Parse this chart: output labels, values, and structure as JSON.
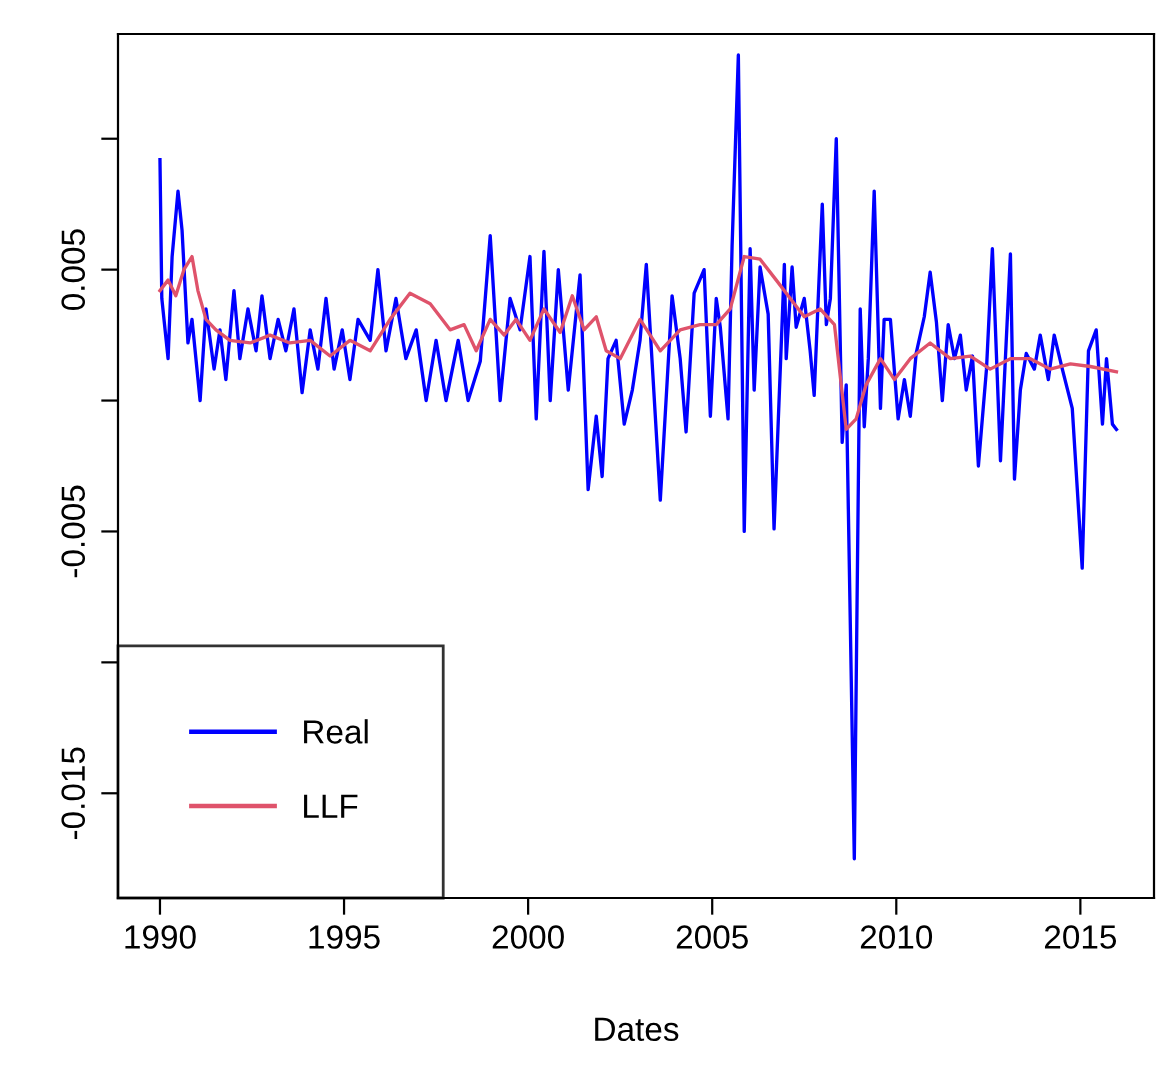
{
  "chart_data": {
    "type": "line",
    "xlabel": "Dates",
    "xlim": [
      1988.86,
      2017.0
    ],
    "ylim": [
      -0.019,
      0.014
    ],
    "xticks": [
      1990,
      1995,
      2000,
      2005,
      2010,
      2015
    ],
    "yticks": [
      -0.015,
      {
        "value": -0.01,
        "label": null
      },
      -0.005,
      {
        "value": 0,
        "label": null
      },
      0.005,
      {
        "value": 0.01,
        "label": null
      }
    ],
    "legend": "bottom left",
    "grid": false,
    "marker": "none",
    "line_style": "solid",
    "series": [
      {
        "name": "Real",
        "color": "#0000ff",
        "x": [
          1990.0,
          1990.05,
          1990.22,
          1990.33,
          1990.49,
          1990.6,
          1990.76,
          1990.87,
          1991.09,
          1991.25,
          1991.47,
          1991.63,
          1991.79,
          1992.01,
          1992.17,
          1992.39,
          1992.61,
          1992.77,
          1992.99,
          1993.21,
          1993.42,
          1993.64,
          1993.86,
          1994.08,
          1994.29,
          1994.51,
          1994.73,
          1994.95,
          1995.16,
          1995.38,
          1995.71,
          1995.92,
          1996.14,
          1996.41,
          1996.68,
          1996.96,
          1997.23,
          1997.5,
          1997.77,
          1998.1,
          1998.37,
          1998.7,
          1998.97,
          1999.24,
          1999.51,
          1999.78,
          2000.05,
          2000.22,
          2000.43,
          2000.6,
          2000.82,
          2001.09,
          2001.41,
          2001.63,
          2001.85,
          2002.01,
          2002.17,
          2002.39,
          2002.61,
          2002.83,
          2003.04,
          2003.21,
          2003.59,
          2003.91,
          2004.13,
          2004.29,
          2004.51,
          2004.78,
          2004.95,
          2005.11,
          2005.22,
          2005.43,
          2005.54,
          2005.71,
          2005.87,
          2006.03,
          2006.14,
          2006.3,
          2006.52,
          2006.68,
          2006.96,
          2007.01,
          2007.17,
          2007.28,
          2007.5,
          2007.66,
          2007.77,
          2007.88,
          2007.99,
          2008.1,
          2008.21,
          2008.37,
          2008.53,
          2008.64,
          2008.86,
          2009.02,
          2009.13,
          2009.24,
          2009.4,
          2009.57,
          2009.67,
          2009.84,
          2010.05,
          2010.22,
          2010.38,
          2010.54,
          2010.76,
          2010.92,
          2011.09,
          2011.25,
          2011.41,
          2011.58,
          2011.74,
          2011.9,
          2012.07,
          2012.23,
          2012.45,
          2012.61,
          2012.83,
          2013.1,
          2013.21,
          2013.37,
          2013.53,
          2013.75,
          2013.91,
          2014.13,
          2014.29,
          2014.51,
          2014.78,
          2015.05,
          2015.22,
          2015.43,
          2015.6,
          2015.71,
          2015.87,
          2015.98
        ],
        "values": [
          0.0092,
          0.0039,
          0.0016,
          0.0055,
          0.008,
          0.0065,
          0.0022,
          0.0031,
          0.0,
          0.0035,
          0.0012,
          0.0027,
          0.0008,
          0.0042,
          0.0016,
          0.0035,
          0.0019,
          0.004,
          0.0016,
          0.0031,
          0.0019,
          0.0035,
          0.0003,
          0.0027,
          0.0012,
          0.0039,
          0.0012,
          0.0027,
          0.0008,
          0.0031,
          0.0023,
          0.005,
          0.0019,
          0.0039,
          0.0016,
          0.0027,
          0.0,
          0.0023,
          0.0,
          0.0023,
          0.0,
          0.0015,
          0.0063,
          0.0,
          0.0039,
          0.0027,
          0.0055,
          -0.0007,
          0.0057,
          0.0,
          0.005,
          0.0004,
          0.0048,
          -0.0034,
          -0.0006,
          -0.0029,
          0.0016,
          0.0023,
          -0.0009,
          0.0004,
          0.0023,
          0.0052,
          -0.0038,
          0.004,
          0.0016,
          -0.0012,
          0.0041,
          0.005,
          -0.0006,
          0.0039,
          0.0028,
          -0.0007,
          0.0059,
          0.0132,
          -0.005,
          0.0058,
          0.0004,
          0.0051,
          0.0033,
          -0.0049,
          0.0052,
          0.0016,
          0.0051,
          0.0028,
          0.0039,
          0.0019,
          0.0002,
          0.0039,
          0.0075,
          0.0029,
          0.0039,
          0.01,
          -0.0016,
          0.0006,
          -0.0175,
          0.0035,
          -0.001,
          0.0016,
          0.008,
          -0.0003,
          0.0031,
          0.0031,
          -0.0007,
          0.0008,
          -0.0006,
          0.0018,
          0.0032,
          0.0049,
          0.003,
          0.0,
          0.0029,
          0.0016,
          0.0025,
          0.0004,
          0.0017,
          -0.0025,
          0.0012,
          0.0058,
          -0.0023,
          0.0056,
          -0.003,
          0.0004,
          0.0018,
          0.0012,
          0.0025,
          0.0008,
          0.0025,
          0.0012,
          -0.0003,
          -0.0064,
          0.0019,
          0.0027,
          -0.0009,
          0.0016,
          -0.0009,
          -0.0011
        ]
      },
      {
        "name": "LLF",
        "color": "#df536b",
        "x": [
          1990.0,
          1990.22,
          1990.43,
          1990.65,
          1990.87,
          1991.03,
          1991.25,
          1991.52,
          1991.9,
          1992.45,
          1992.99,
          1993.53,
          1994.08,
          1994.62,
          1995.16,
          1995.71,
          1996.25,
          1996.79,
          1997.34,
          1997.88,
          1998.26,
          1998.59,
          1998.97,
          1999.35,
          1999.67,
          2000.05,
          2000.43,
          2000.87,
          2001.2,
          2001.52,
          2001.85,
          2002.12,
          2002.5,
          2003.04,
          2003.59,
          2004.13,
          2004.67,
          2005.11,
          2005.49,
          2005.87,
          2006.3,
          2006.74,
          2007.12,
          2007.5,
          2007.93,
          2008.32,
          2008.64,
          2008.91,
          2009.18,
          2009.57,
          2009.95,
          2010.38,
          2010.92,
          2011.47,
          2012.01,
          2012.55,
          2013.1,
          2013.64,
          2014.18,
          2014.73,
          2015.27,
          2015.98
        ],
        "values": [
          0.0042,
          0.0046,
          0.004,
          0.005,
          0.0055,
          0.0042,
          0.0031,
          0.0027,
          0.0023,
          0.0022,
          0.0025,
          0.0022,
          0.0023,
          0.0017,
          0.0023,
          0.0019,
          0.0031,
          0.0041,
          0.0037,
          0.0027,
          0.0029,
          0.0019,
          0.0031,
          0.0025,
          0.0031,
          0.0023,
          0.0035,
          0.0026,
          0.004,
          0.0027,
          0.0032,
          0.0019,
          0.0016,
          0.0031,
          0.0019,
          0.0027,
          0.0029,
          0.0029,
          0.0035,
          0.0055,
          0.0054,
          0.0046,
          0.0039,
          0.0032,
          0.0035,
          0.0029,
          -0.0011,
          -0.0007,
          0.0006,
          0.0016,
          0.0008,
          0.0016,
          0.0022,
          0.0016,
          0.0017,
          0.0012,
          0.0016,
          0.0016,
          0.0012,
          0.0014,
          0.0013,
          0.0011
        ]
      }
    ]
  }
}
